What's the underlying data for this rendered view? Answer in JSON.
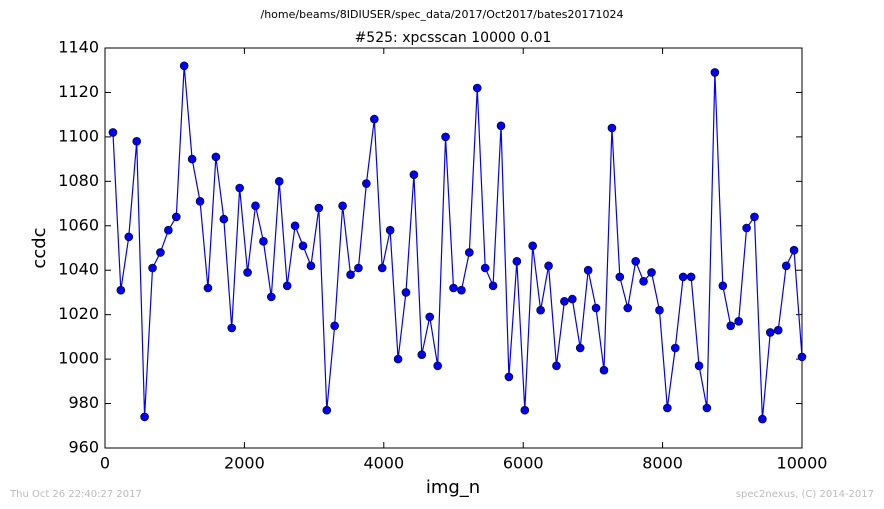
{
  "chart_data": {
    "type": "line",
    "title": "/home/beams/8IDIUSER/spec_data/2017/Oct2017/bates20171024",
    "subtitle": "#525: xpcsscan 10000 0.01",
    "x_label": "img_n",
    "y_label": "ccdc",
    "annotations": [
      "Thu Oct 26 22:40:27 2017",
      "spec2nexus, (C) 2014-2017"
    ],
    "color": "#0000ff",
    "marker": "circle",
    "x": [
      114,
      227,
      341,
      455,
      568,
      682,
      795,
      909,
      1023,
      1136,
      1250,
      1364,
      1477,
      1591,
      1705,
      1818,
      1932,
      2045,
      2159,
      2273,
      2386,
      2500,
      2614,
      2727,
      2841,
      2955,
      3068,
      3182,
      3295,
      3409,
      3523,
      3636,
      3750,
      3864,
      3977,
      4091,
      4205,
      4318,
      4432,
      4545,
      4659,
      4773,
      4886,
      5000,
      5114,
      5227,
      5341,
      5455,
      5568,
      5682,
      5795,
      5909,
      6023,
      6136,
      6250,
      6364,
      6477,
      6591,
      6705,
      6818,
      6932,
      7045,
      7159,
      7273,
      7386,
      7500,
      7614,
      7727,
      7841,
      7955,
      8068,
      8182,
      8295,
      8409,
      8523,
      8636,
      8750,
      8864,
      8977,
      9091,
      9205,
      9318,
      9432,
      9545,
      9659,
      9773,
      9886,
      10000
    ],
    "values": [
      1102,
      1031,
      1055,
      1098,
      974,
      1041,
      1048,
      1058,
      1064,
      1132,
      1090,
      1071,
      1032,
      1091,
      1063,
      1014,
      1077,
      1039,
      1069,
      1053,
      1028,
      1080,
      1033,
      1060,
      1051,
      1042,
      1068,
      977,
      1015,
      1069,
      1038,
      1041,
      1079,
      1108,
      1041,
      1058,
      1000,
      1030,
      1083,
      1002,
      1019,
      997,
      1100,
      1032,
      1031,
      1048,
      1122,
      1041,
      1033,
      1105,
      992,
      1044,
      977,
      1051,
      1022,
      1042,
      997,
      1026,
      1027,
      1005,
      1040,
      1023,
      995,
      1104,
      1037,
      1023,
      1044,
      1035,
      1039,
      1022,
      978,
      1005,
      1037,
      1037,
      997,
      978,
      1129,
      1033,
      1015,
      1017,
      1059,
      1064,
      973,
      1012,
      1013,
      1042,
      1049,
      1001
    ],
    "xlim": [
      0,
      10000
    ],
    "xticks": [
      0,
      2000,
      4000,
      6000,
      8000,
      10000
    ],
    "ylim": [
      960,
      1140
    ],
    "yticks": [
      960,
      980,
      1000,
      1020,
      1040,
      1060,
      1080,
      1100,
      1120,
      1140
    ],
    "grid": false
  }
}
